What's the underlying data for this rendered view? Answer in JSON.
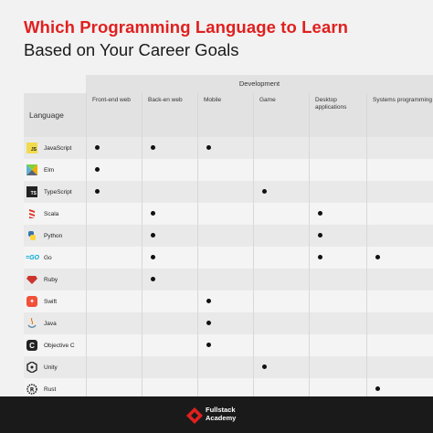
{
  "title": {
    "line1": "Which Programming Language to Learn",
    "line2": "Based on Your Career Goals"
  },
  "table": {
    "group_header": "Development",
    "language_header": "Language",
    "columns": [
      "Front-end web",
      "Back-en web",
      "Mobile",
      "Game",
      "Desktop applications",
      "Systems programming"
    ],
    "rows": [
      {
        "language": "JavaScript",
        "icon": "javascript-logo-icon",
        "marks": [
          true,
          true,
          true,
          false,
          false,
          false
        ]
      },
      {
        "language": "Elm",
        "icon": "elm-logo-icon",
        "marks": [
          true,
          false,
          false,
          false,
          false,
          false
        ]
      },
      {
        "language": "TypeScript",
        "icon": "typescript-logo-icon",
        "marks": [
          true,
          false,
          false,
          true,
          false,
          false
        ]
      },
      {
        "language": "Scala",
        "icon": "scala-logo-icon",
        "marks": [
          false,
          true,
          false,
          false,
          true,
          false
        ]
      },
      {
        "language": "Python",
        "icon": "python-logo-icon",
        "marks": [
          false,
          true,
          false,
          false,
          true,
          false
        ]
      },
      {
        "language": "Go",
        "icon": "go-logo-icon",
        "marks": [
          false,
          true,
          false,
          false,
          true,
          true
        ]
      },
      {
        "language": "Ruby",
        "icon": "ruby-logo-icon",
        "marks": [
          false,
          true,
          false,
          false,
          false,
          false
        ]
      },
      {
        "language": "Swift",
        "icon": "swift-logo-icon",
        "marks": [
          false,
          false,
          true,
          false,
          false,
          false
        ]
      },
      {
        "language": "Java",
        "icon": "java-logo-icon",
        "marks": [
          false,
          false,
          true,
          false,
          false,
          false
        ]
      },
      {
        "language": "Objective C",
        "icon": "objective-c-logo-icon",
        "marks": [
          false,
          false,
          true,
          false,
          false,
          false
        ]
      },
      {
        "language": "Unity",
        "icon": "unity-logo-icon",
        "marks": [
          false,
          false,
          false,
          true,
          false,
          false
        ]
      },
      {
        "language": "Rust",
        "icon": "rust-logo-icon",
        "marks": [
          false,
          false,
          false,
          false,
          false,
          true
        ]
      }
    ]
  },
  "footer": {
    "brand_line1": "Fullstack",
    "brand_line2": "Academy"
  },
  "colors": {
    "title_accent": "#e0201f",
    "footer_bg": "#1a1a1a",
    "header_bg": "#e2e2e2"
  }
}
